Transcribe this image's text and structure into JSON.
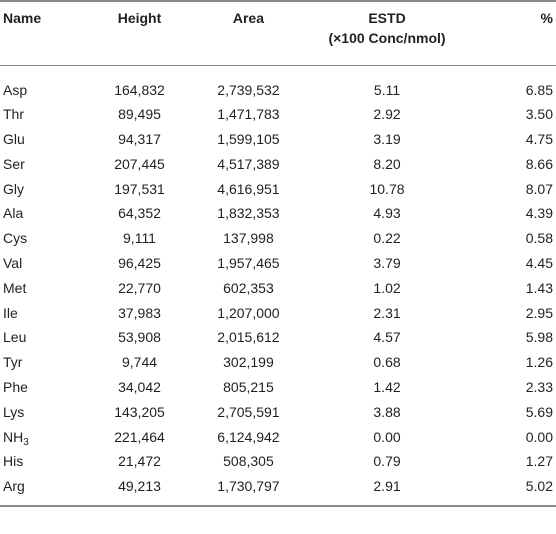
{
  "table": {
    "headers": {
      "name": "Name",
      "height": "Height",
      "area": "Area",
      "estd_line1": "ESTD",
      "estd_line2": "(×100 Conc/nmol)",
      "pct": "%"
    },
    "rows": [
      {
        "name": "Asp",
        "height": "164,832",
        "area": "2,739,532",
        "estd": "5.11",
        "pct": "6.85"
      },
      {
        "name": "Thr",
        "height": "89,495",
        "area": "1,471,783",
        "estd": "2.92",
        "pct": "3.50"
      },
      {
        "name": "Glu",
        "height": "94,317",
        "area": "1,599,105",
        "estd": "3.19",
        "pct": "4.75"
      },
      {
        "name": "Ser",
        "height": "207,445",
        "area": "4,517,389",
        "estd": "8.20",
        "pct": "8.66"
      },
      {
        "name": "Gly",
        "height": "197,531",
        "area": "4,616,951",
        "estd": "10.78",
        "pct": "8.07"
      },
      {
        "name": "Ala",
        "height": "64,352",
        "area": "1,832,353",
        "estd": "4.93",
        "pct": "4.39"
      },
      {
        "name": "Cys",
        "height": "9,111",
        "area": "137,998",
        "estd": "0.22",
        "pct": "0.58"
      },
      {
        "name": "Val",
        "height": "96,425",
        "area": "1,957,465",
        "estd": "3.79",
        "pct": "4.45"
      },
      {
        "name": "Met",
        "height": "22,770",
        "area": "602,353",
        "estd": "1.02",
        "pct": "1.43"
      },
      {
        "name": "Ile",
        "height": "37,983",
        "area": "1,207,000",
        "estd": "2.31",
        "pct": "2.95"
      },
      {
        "name": "Leu",
        "height": "53,908",
        "area": "2,015,612",
        "estd": "4.57",
        "pct": "5.98"
      },
      {
        "name": "Tyr",
        "height": "9,744",
        "area": "302,199",
        "estd": "0.68",
        "pct": "1.26"
      },
      {
        "name": "Phe",
        "height": "34,042",
        "area": "805,215",
        "estd": "1.42",
        "pct": "2.33"
      },
      {
        "name": "Lys",
        "height": "143,205",
        "area": "2,705,591",
        "estd": "3.88",
        "pct": "5.69"
      },
      {
        "name": "NH",
        "name_sub": "3",
        "height": "221,464",
        "area": "6,124,942",
        "estd": "0.00",
        "pct": "0.00"
      },
      {
        "name": "His",
        "height": "21,472",
        "area": "508,305",
        "estd": "0.79",
        "pct": "1.27"
      },
      {
        "name": "Arg",
        "height": "49,213",
        "area": "1,730,797",
        "estd": "2.91",
        "pct": "5.02"
      }
    ]
  }
}
